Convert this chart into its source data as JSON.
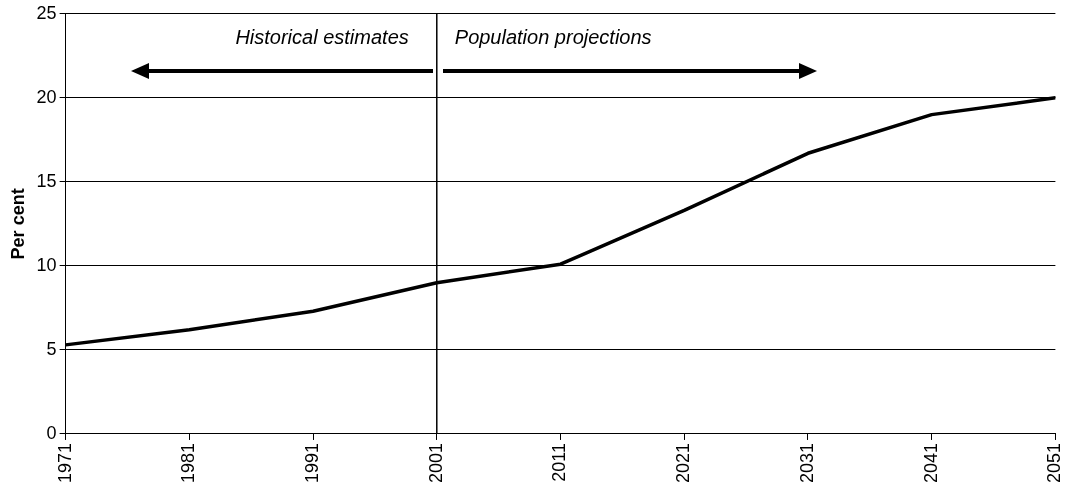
{
  "chart_data": {
    "type": "line",
    "ylabel": "Per cent",
    "x": [
      1971,
      1981,
      1991,
      2001,
      2011,
      2021,
      2031,
      2041,
      2051
    ],
    "series": [
      {
        "color": "#000000",
        "values": [
          5.3,
          6.2,
          7.3,
          9.0,
          10.1,
          13.3,
          16.7,
          19.0,
          20.0
        ]
      }
    ],
    "xlim": [
      1971,
      2051
    ],
    "xticks": [
      1971,
      1981,
      1991,
      2001,
      2011,
      2021,
      2031,
      2041,
      2051
    ],
    "ylim": [
      0,
      25
    ],
    "yticks": [
      0,
      5,
      10,
      15,
      20,
      25
    ],
    "grid": "y",
    "legend": false,
    "marker": "none",
    "line_style": "solid",
    "ref_lines": [
      {
        "axis": "x",
        "value": 2001,
        "color": "#000000"
      }
    ],
    "annotations": [
      "Historical estimates",
      "Population projections"
    ]
  }
}
